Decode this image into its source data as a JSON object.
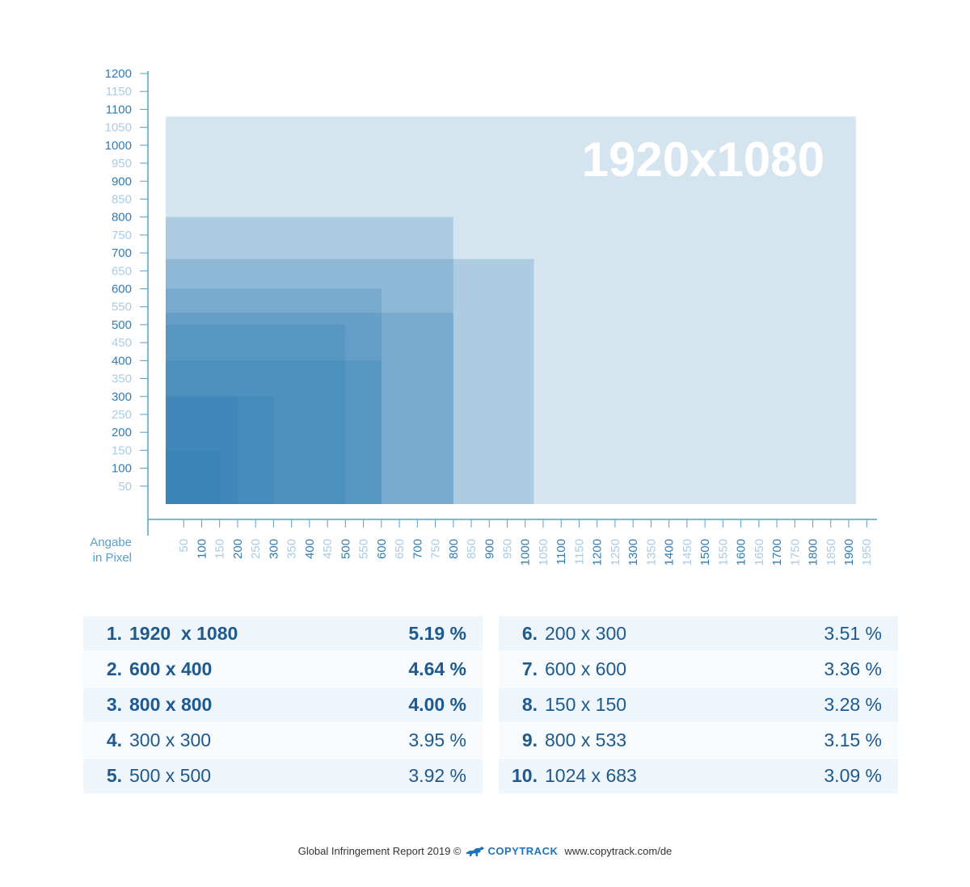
{
  "chart_data": {
    "type": "area",
    "title": "",
    "xlabel": "",
    "ylabel": "",
    "unit_label": [
      "Angabe",
      "in Pixel"
    ],
    "big_label": "1920x1080",
    "xlim": [
      0,
      1950
    ],
    "ylim": [
      0,
      1200
    ],
    "tick_step": 50,
    "major_tick_step": 100,
    "colors": {
      "axis": "#5b9ec9",
      "major": "#2e7cb5",
      "minor": "#a9cbe5",
      "rect": "#2e7cb5"
    },
    "series": [
      {
        "width": 1920,
        "height": 1080
      },
      {
        "width": 800,
        "height": 800
      },
      {
        "width": 1024,
        "height": 683
      },
      {
        "width": 600,
        "height": 600
      },
      {
        "width": 800,
        "height": 533
      },
      {
        "width": 500,
        "height": 500
      },
      {
        "width": 600,
        "height": 400
      },
      {
        "width": 300,
        "height": 300
      },
      {
        "width": 200,
        "height": 300
      },
      {
        "width": 150,
        "height": 150
      }
    ]
  },
  "ranking": {
    "left": [
      {
        "rank": "1.",
        "size": "1920  x 1080",
        "pct": "5.19 %",
        "bold": true
      },
      {
        "rank": "2.",
        "size": "600 x 400",
        "pct": "4.64 %",
        "bold": true
      },
      {
        "rank": "3.",
        "size": "800 x 800",
        "pct": "4.00 %",
        "bold": true
      },
      {
        "rank": "4.",
        "size": "300 x 300",
        "pct": "3.95 %",
        "bold": false
      },
      {
        "rank": "5.",
        "size": "500 x 500",
        "pct": "3.92 %",
        "bold": false
      }
    ],
    "right": [
      {
        "rank": "6.",
        "size": "200 x 300",
        "pct": "3.51 %",
        "bold": false
      },
      {
        "rank": "7.",
        "size": "600 x 600",
        "pct": "3.36 %",
        "bold": false
      },
      {
        "rank": "8.",
        "size": "150 x 150",
        "pct": "3.28 %",
        "bold": false
      },
      {
        "rank": "9.",
        "size": "800 x 533",
        "pct": "3.15 %",
        "bold": false
      },
      {
        "rank": "10.",
        "size": "1024 x 683",
        "pct": "3.09 %",
        "bold": false
      }
    ]
  },
  "footer": {
    "report": "Global Infringement Report 2019 ©",
    "brand": "COPYTRACK",
    "url": "www.copytrack.com/de",
    "logo_icon": "dog-icon"
  }
}
